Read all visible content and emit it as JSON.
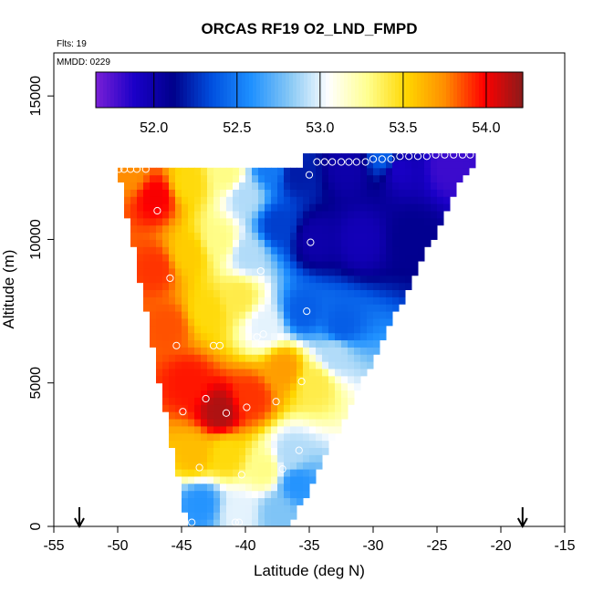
{
  "chart_data": {
    "type": "heatmap",
    "title": "ORCAS RF19 O2_LND_FMPD",
    "flights_note": "Flts: 19",
    "date_note": "MMDD: 0229",
    "xlabel": "Latitude (deg N)",
    "ylabel": "Altitude (m)",
    "xlim": [
      -55,
      -15
    ],
    "ylim": [
      0,
      16500
    ],
    "x_ticks": [
      -55,
      -50,
      -45,
      -40,
      -35,
      -30,
      -25,
      -20,
      -15
    ],
    "x_tick_labels": [
      "-55",
      "-50",
      "-45",
      "-40",
      "-35",
      "-30",
      "-25",
      "-20",
      "-15"
    ],
    "y_ticks": [
      0,
      5000,
      10000,
      15000
    ],
    "y_tick_labels": [
      "0",
      "5000",
      "10000",
      "15000"
    ],
    "colorbar": {
      "range": [
        51.65,
        54.22
      ],
      "ticks": [
        52.0,
        52.5,
        53.0,
        53.5,
        54.0
      ],
      "tick_labels": [
        "52.0",
        "52.5",
        "53.0",
        "53.5",
        "54.0"
      ],
      "colors": [
        "#7a1fd6",
        "#1a00c8",
        "#00008b",
        "#0050e0",
        "#1e90ff",
        "#87c8f5",
        "#ffffff",
        "#ffff90",
        "#ffd700",
        "#ff8c00",
        "#ff0000",
        "#8b1a1a"
      ]
    },
    "arrows_at_latitude": [
      -53,
      -18.3
    ],
    "grid": false,
    "legend": "colorbar top",
    "field_polygon": [
      [
        -50.0,
        12500
      ],
      [
        -22.0,
        13000
      ],
      [
        -36.5,
        0
      ],
      [
        -44.5,
        0
      ]
    ],
    "field_anchors": [
      {
        "lat": -49,
        "alt": 12300,
        "value": 53.75
      },
      {
        "lat": -47,
        "alt": 11500,
        "value": 54.0
      },
      {
        "lat": -44.5,
        "alt": 12000,
        "value": 53.5
      },
      {
        "lat": -41.5,
        "alt": 12300,
        "value": 53.3
      },
      {
        "lat": -40,
        "alt": 11500,
        "value": 52.9
      },
      {
        "lat": -38,
        "alt": 12500,
        "value": 52.5
      },
      {
        "lat": -36,
        "alt": 12300,
        "value": 52.2
      },
      {
        "lat": -32,
        "alt": 12500,
        "value": 52.0
      },
      {
        "lat": -28,
        "alt": 12500,
        "value": 51.9
      },
      {
        "lat": -24,
        "alt": 12600,
        "value": 51.8
      },
      {
        "lat": -29,
        "alt": 12900,
        "value": 52.4
      },
      {
        "lat": -47,
        "alt": 9000,
        "value": 53.9
      },
      {
        "lat": -44.5,
        "alt": 9500,
        "value": 53.55
      },
      {
        "lat": -42,
        "alt": 10000,
        "value": 53.3
      },
      {
        "lat": -39.8,
        "alt": 9500,
        "value": 52.9
      },
      {
        "lat": -37.5,
        "alt": 10500,
        "value": 52.3
      },
      {
        "lat": -34.5,
        "alt": 10000,
        "value": 52.0
      },
      {
        "lat": -31,
        "alt": 10000,
        "value": 51.95
      },
      {
        "lat": -27,
        "alt": 10000,
        "value": 52.1
      },
      {
        "lat": -46,
        "alt": 7000,
        "value": 53.85
      },
      {
        "lat": -43,
        "alt": 7500,
        "value": 53.5
      },
      {
        "lat": -40.5,
        "alt": 8000,
        "value": 53.4
      },
      {
        "lat": -38.5,
        "alt": 7000,
        "value": 53.0
      },
      {
        "lat": -35.5,
        "alt": 7500,
        "value": 52.4
      },
      {
        "lat": -32.5,
        "alt": 7000,
        "value": 52.4
      },
      {
        "lat": -44.5,
        "alt": 5000,
        "value": 53.95
      },
      {
        "lat": -42,
        "alt": 4000,
        "value": 54.15
      },
      {
        "lat": -39.5,
        "alt": 4500,
        "value": 53.9
      },
      {
        "lat": -37,
        "alt": 5500,
        "value": 53.7
      },
      {
        "lat": -34.5,
        "alt": 5000,
        "value": 53.4
      },
      {
        "lat": -33,
        "alt": 6000,
        "value": 52.9
      },
      {
        "lat": -44,
        "alt": 2500,
        "value": 53.6
      },
      {
        "lat": -41.5,
        "alt": 2500,
        "value": 53.5
      },
      {
        "lat": -38.5,
        "alt": 2000,
        "value": 53.3
      },
      {
        "lat": -36.5,
        "alt": 2500,
        "value": 52.9
      },
      {
        "lat": -36,
        "alt": 1500,
        "value": 52.6
      },
      {
        "lat": -43.5,
        "alt": 800,
        "value": 52.6
      },
      {
        "lat": -40.5,
        "alt": 500,
        "value": 53.0
      },
      {
        "lat": -37.5,
        "alt": 500,
        "value": 52.8
      }
    ],
    "sample_points": [
      [
        -49.9,
        12450
      ],
      [
        -49.5,
        12450
      ],
      [
        -49.0,
        12450
      ],
      [
        -48.5,
        12450
      ],
      [
        -47.8,
        12450
      ],
      [
        -35.0,
        12250
      ],
      [
        -34.4,
        12700
      ],
      [
        -33.8,
        12700
      ],
      [
        -33.2,
        12700
      ],
      [
        -32.5,
        12700
      ],
      [
        -31.9,
        12700
      ],
      [
        -31.3,
        12700
      ],
      [
        -30.6,
        12700
      ],
      [
        -30.0,
        12800
      ],
      [
        -29.3,
        12800
      ],
      [
        -28.6,
        12800
      ],
      [
        -27.9,
        12900
      ],
      [
        -27.2,
        12900
      ],
      [
        -26.5,
        12900
      ],
      [
        -25.8,
        12900
      ],
      [
        -25.1,
        12950
      ],
      [
        -24.4,
        12950
      ],
      [
        -23.7,
        12950
      ],
      [
        -23.0,
        12950
      ],
      [
        -22.4,
        12950
      ],
      [
        -46.9,
        11000
      ],
      [
        -34.9,
        9900
      ],
      [
        -38.8,
        8900
      ],
      [
        -45.9,
        8650
      ],
      [
        -35.2,
        7500
      ],
      [
        -45.4,
        6300
      ],
      [
        -42.5,
        6300
      ],
      [
        -42.0,
        6300
      ],
      [
        -39.1,
        6600
      ],
      [
        -38.6,
        6700
      ],
      [
        -35.6,
        5050
      ],
      [
        -43.1,
        4450
      ],
      [
        -37.6,
        4350
      ],
      [
        -39.9,
        4150
      ],
      [
        -44.9,
        4000
      ],
      [
        -41.5,
        3950
      ],
      [
        -35.8,
        2650
      ],
      [
        -37.1,
        2000
      ],
      [
        -43.6,
        2050
      ],
      [
        -40.3,
        1800
      ],
      [
        -44.2,
        140
      ],
      [
        -40.8,
        140
      ],
      [
        -40.5,
        140
      ]
    ]
  }
}
